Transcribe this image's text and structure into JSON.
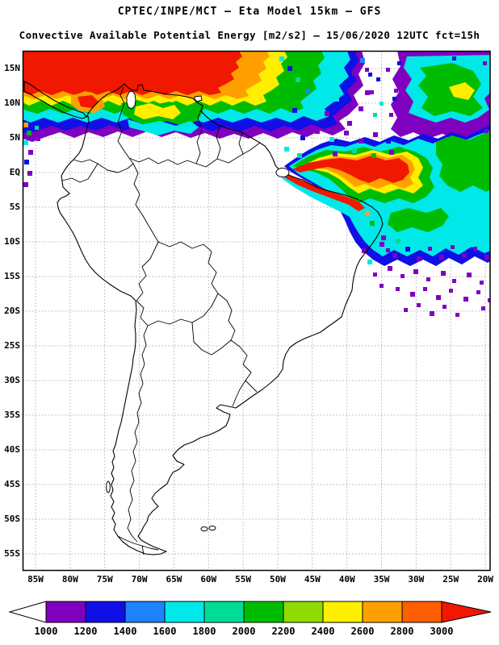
{
  "header": {
    "title": "CPTEC/INPE/MCT –  Eta Model 15km – GFS",
    "subtitle": "Convective Available Potential Energy [m2/s2] – 15/06/2020 12UTC fct=15h"
  },
  "chart_data": {
    "type": "heatmap",
    "variable": "Convective Available Potential Energy",
    "units": "m2/s2",
    "source": "CPTEC/INPE/MCT",
    "model": "Eta Model 15km",
    "boundary_condition": "GFS",
    "run": "15/06/2020 12UTC",
    "forecast": "fct=15h",
    "lat_labels": [
      "15N",
      "10N",
      "5N",
      "EQ",
      "5S",
      "10S",
      "15S",
      "20S",
      "25S",
      "30S",
      "35S",
      "40S",
      "45S",
      "50S",
      "55S"
    ],
    "lon_labels": [
      "85W",
      "80W",
      "75W",
      "70W",
      "65W",
      "60W",
      "55W",
      "50W",
      "45W",
      "40W",
      "35W",
      "30W",
      "25W",
      "20W"
    ],
    "grid": "dotted",
    "legend": {
      "labels": [
        "1000",
        "1200",
        "1400",
        "1600",
        "1800",
        "2000",
        "2200",
        "2400",
        "2600",
        "2800",
        "3000"
      ],
      "colors": [
        "#7f00bf",
        "#0f0fe6",
        "#1e82ff",
        "#00e8e8",
        "#00dc96",
        "#00bc00",
        "#8fdc00",
        "#ffee00",
        "#ffa000",
        "#ff5f00"
      ],
      "over_color": "#f01800",
      "under_color": "#ffffff"
    },
    "high_cape_regions": [
      {
        "area": "Southern Caribbean / northern Colombia and Venezuela",
        "value_m2s2": "2600 to >3000"
      },
      {
        "area": "Equatorial Atlantic off the Guianas and NE Brazil (ITCZ band)",
        "value_m2s2": "2200 to >3000"
      },
      {
        "area": "Tropical North Atlantic, northeast corner of domain",
        "value_m2s2": "1000-2400"
      },
      {
        "area": "Scattered cells south and east of the ITCZ band",
        "value_m2s2": "1000-1400"
      }
    ]
  }
}
